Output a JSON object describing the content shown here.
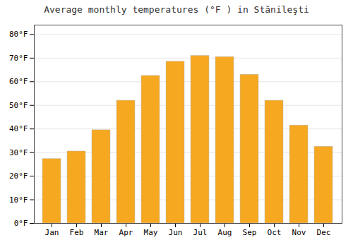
{
  "chart_data": {
    "type": "bar",
    "title": "Average monthly temperatures (°F ) in Stănileşti",
    "categories": [
      "Jan",
      "Feb",
      "Mar",
      "Apr",
      "May",
      "Jun",
      "Jul",
      "Aug",
      "Sep",
      "Oct",
      "Nov",
      "Dec"
    ],
    "values": [
      27.3,
      30.5,
      39.5,
      52.0,
      62.5,
      68.5,
      71.0,
      70.5,
      63.0,
      52.0,
      41.5,
      32.5
    ],
    "color": "#F5A820",
    "ylim": [
      0,
      84
    ],
    "yticks": [
      {
        "value": 0,
        "label": "0°F"
      },
      {
        "value": 10,
        "label": "10°F"
      },
      {
        "value": 20,
        "label": "20°F"
      },
      {
        "value": 30,
        "label": "30°F"
      },
      {
        "value": 40,
        "label": "40°F"
      },
      {
        "value": 50,
        "label": "50°F"
      },
      {
        "value": 60,
        "label": "60°F"
      },
      {
        "value": 70,
        "label": "70°F"
      },
      {
        "value": 80,
        "label": "80°F"
      }
    ],
    "grid": true
  }
}
